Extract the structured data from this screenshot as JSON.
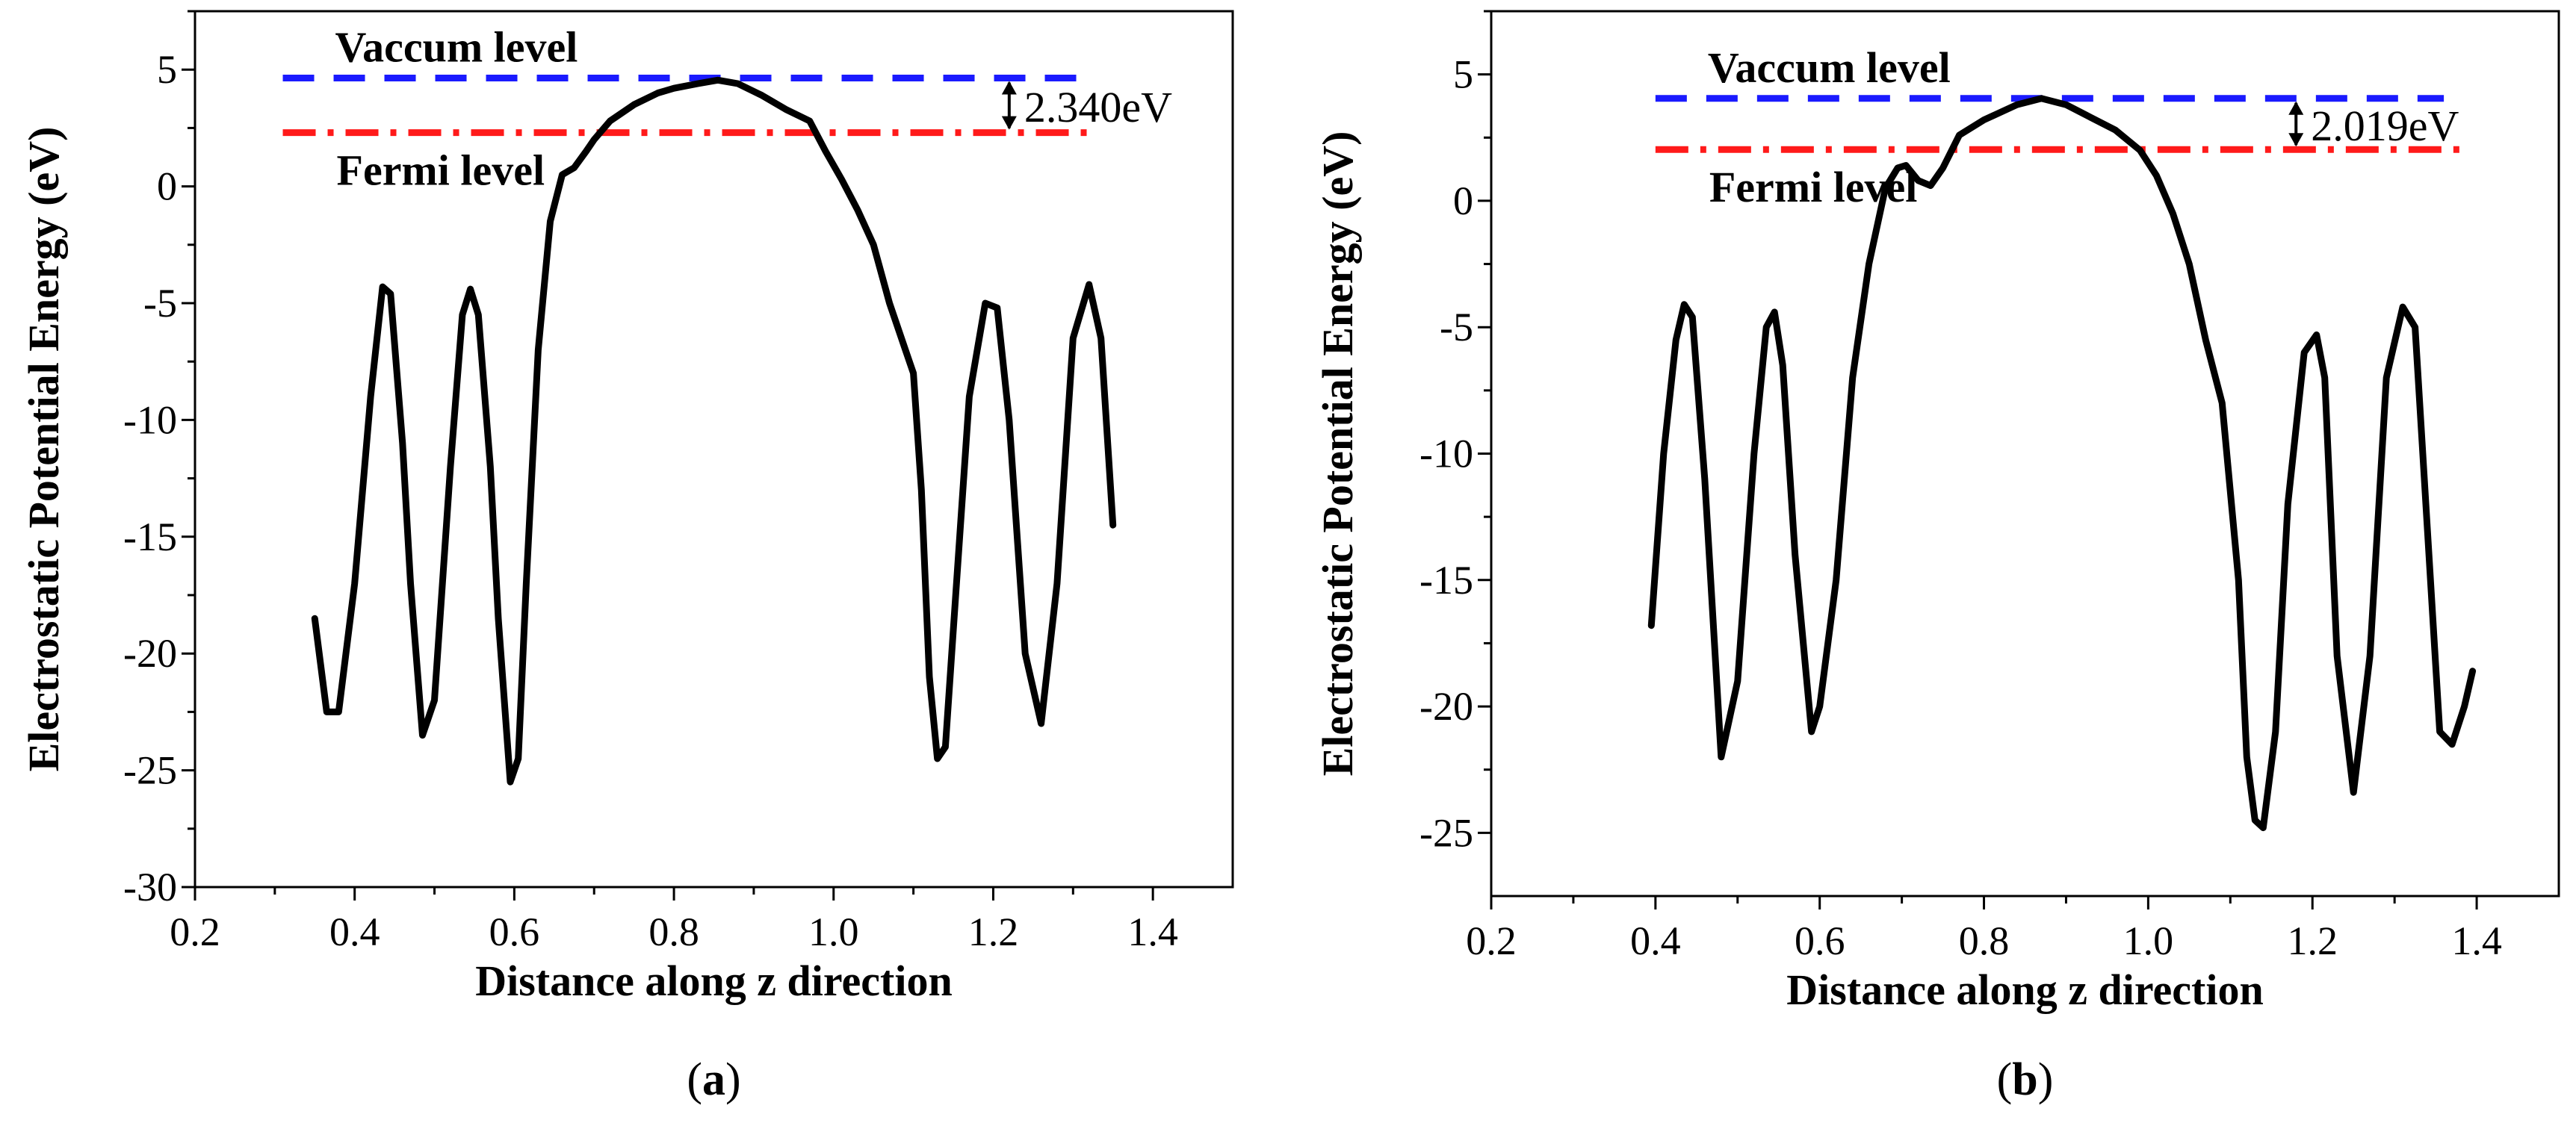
{
  "colors": {
    "curve": "#000000",
    "vacuum": "#1a1aff",
    "fermi": "#ff1a1a",
    "axis": "#000000"
  },
  "chart_data": [
    {
      "panel": "a",
      "type": "line",
      "caption_open": "(",
      "caption_letter": "a",
      "caption_close": ")",
      "xlabel": "Distance along z direction",
      "ylabel": "Electrostatic Potential Energy (eV)",
      "xlim": [
        0.2,
        1.5
      ],
      "ylim": [
        -30,
        7.5
      ],
      "xticks": [
        0.2,
        0.4,
        0.6,
        0.8,
        1.0,
        1.2,
        1.4
      ],
      "xtick_labels": [
        "0.2",
        "0.4",
        "0.6",
        "0.8",
        "1.0",
        "1.2",
        "1.4"
      ],
      "yticks": [
        -30,
        -25,
        -20,
        -15,
        -10,
        -5,
        0,
        5
      ],
      "ytick_labels": [
        "-30",
        "-25",
        "-20",
        "-15",
        "-10",
        "-5",
        "0",
        "5"
      ],
      "vacuum_level": 4.64,
      "fermi_level": 2.3,
      "vacuum_label": "Vaccum level",
      "fermi_label": "Fermi level",
      "gap_label": "2.340eV",
      "vacuum_line_x": [
        0.31,
        1.31
      ],
      "fermi_line_x": [
        0.31,
        1.33
      ],
      "gap_arrow_x": 1.22,
      "series": [
        {
          "name": "potential",
          "x": [
            0.35,
            0.365,
            0.38,
            0.4,
            0.42,
            0.435,
            0.445,
            0.46,
            0.47,
            0.485,
            0.5,
            0.52,
            0.535,
            0.545,
            0.555,
            0.57,
            0.58,
            0.595,
            0.605,
            0.615,
            0.63,
            0.645,
            0.66,
            0.675,
            0.69,
            0.7,
            0.72,
            0.75,
            0.78,
            0.8,
            0.83,
            0.855,
            0.88,
            0.91,
            0.94,
            0.97,
            0.99,
            1.01,
            1.03,
            1.05,
            1.07,
            1.09,
            1.1,
            1.11,
            1.12,
            1.13,
            1.14,
            1.15,
            1.17,
            1.19,
            1.205,
            1.22,
            1.24,
            1.26,
            1.28,
            1.3,
            1.32,
            1.335,
            1.35
          ],
          "y": [
            -18.5,
            -22.5,
            -22.5,
            -17,
            -9,
            -4.3,
            -4.6,
            -11,
            -17,
            -23.5,
            -22,
            -12,
            -5.5,
            -4.4,
            -5.5,
            -12,
            -18.5,
            -25.5,
            -24.5,
            -17,
            -7,
            -1.5,
            0.5,
            0.8,
            1.5,
            2.0,
            2.8,
            3.5,
            4.0,
            4.2,
            4.4,
            4.55,
            4.4,
            3.9,
            3.3,
            2.8,
            1.5,
            0.3,
            -1.0,
            -2.5,
            -5.0,
            -7.0,
            -8.0,
            -13,
            -21,
            -24.5,
            -24,
            -19,
            -9,
            -5.0,
            -5.2,
            -10,
            -20,
            -23,
            -17,
            -6.5,
            -4.2,
            -6.5,
            -14.5
          ]
        }
      ]
    },
    {
      "panel": "b",
      "type": "line",
      "caption_open": "(",
      "caption_letter": "b",
      "caption_close": ")",
      "xlabel": "Distance along z direction",
      "ylabel": "Electrostatic Potential Energy (eV)",
      "xlim": [
        0.2,
        1.5
      ],
      "ylim": [
        -27.5,
        7.5
      ],
      "xticks": [
        0.2,
        0.4,
        0.6,
        0.8,
        1.0,
        1.2,
        1.4
      ],
      "xtick_labels": [
        "0.2",
        "0.4",
        "0.6",
        "0.8",
        "1.0",
        "1.2",
        "1.4"
      ],
      "yticks": [
        -25,
        -20,
        -15,
        -10,
        -5,
        0,
        5
      ],
      "ytick_labels": [
        "-25",
        "-20",
        "-15",
        "-10",
        "-5",
        "0",
        "5"
      ],
      "vacuum_level": 4.05,
      "fermi_level": 2.03,
      "vacuum_label": "Vaccum level",
      "fermi_label": "Fermi level",
      "gap_label": "2.019eV",
      "vacuum_line_x": [
        0.4,
        1.36
      ],
      "fermi_line_x": [
        0.4,
        1.38
      ],
      "gap_arrow_x": 1.18,
      "series": [
        {
          "name": "potential",
          "x": [
            0.395,
            0.41,
            0.425,
            0.435,
            0.445,
            0.46,
            0.48,
            0.5,
            0.52,
            0.535,
            0.545,
            0.555,
            0.57,
            0.59,
            0.6,
            0.62,
            0.64,
            0.66,
            0.68,
            0.695,
            0.705,
            0.72,
            0.735,
            0.75,
            0.77,
            0.8,
            0.84,
            0.87,
            0.9,
            0.93,
            0.96,
            0.99,
            1.01,
            1.03,
            1.05,
            1.07,
            1.09,
            1.11,
            1.12,
            1.13,
            1.14,
            1.155,
            1.17,
            1.19,
            1.205,
            1.215,
            1.23,
            1.25,
            1.27,
            1.29,
            1.31,
            1.325,
            1.34,
            1.355,
            1.37,
            1.385,
            1.395
          ],
          "y": [
            -16.8,
            -10,
            -5.5,
            -4.1,
            -4.6,
            -11,
            -22,
            -19,
            -10,
            -5.0,
            -4.4,
            -6.5,
            -14,
            -21,
            -20,
            -15,
            -7,
            -2.5,
            0.5,
            1.3,
            1.4,
            0.8,
            0.6,
            1.3,
            2.6,
            3.2,
            3.8,
            4.05,
            3.8,
            3.3,
            2.8,
            2.0,
            1.0,
            -0.5,
            -2.5,
            -5.5,
            -8.0,
            -15,
            -22,
            -24.5,
            -24.8,
            -21,
            -12,
            -6.0,
            -5.3,
            -7,
            -18,
            -23.4,
            -18,
            -7.0,
            -4.2,
            -5.0,
            -13,
            -21,
            -21.5,
            -20,
            -18.6
          ]
        }
      ]
    }
  ]
}
